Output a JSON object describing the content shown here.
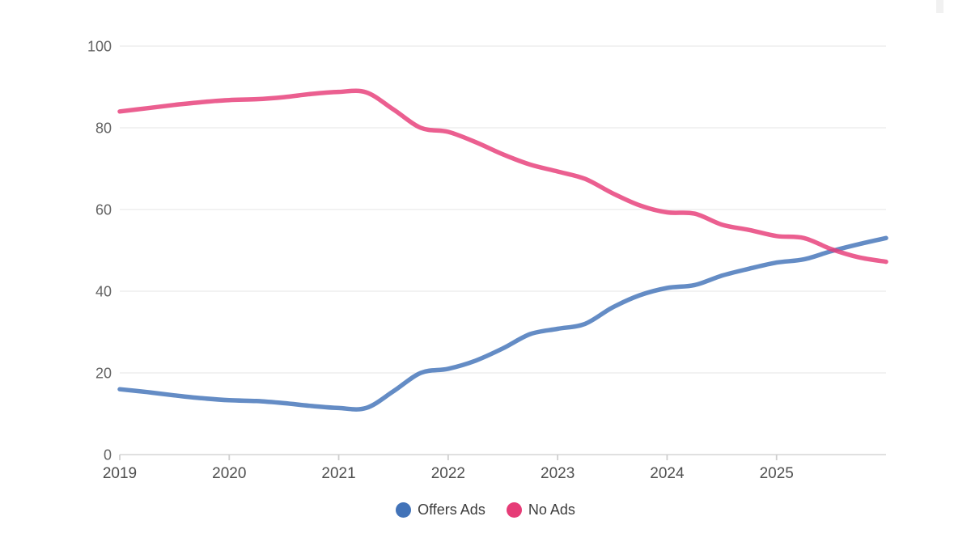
{
  "chart_data": {
    "type": "line",
    "title": "",
    "xlabel": "",
    "ylabel": "",
    "xlim": [
      2019,
      2026
    ],
    "ylim": [
      0,
      100
    ],
    "grid": "horizontal",
    "legend_position": "bottom",
    "x_ticks": [
      2019,
      2020,
      2021,
      2022,
      2023,
      2024,
      2025
    ],
    "x_tick_labels": [
      "2019",
      "2020",
      "2021",
      "2022",
      "2023",
      "2024",
      "2025"
    ],
    "y_ticks": [
      0,
      20,
      40,
      60,
      80,
      100
    ],
    "y_tick_labels": [
      "0",
      "20",
      "40",
      "60",
      "80",
      "100"
    ],
    "x": [
      2019,
      2019.25,
      2019.5,
      2019.75,
      2020,
      2020.25,
      2020.5,
      2020.75,
      2021,
      2021.25,
      2021.5,
      2021.75,
      2022,
      2022.25,
      2022.5,
      2022.75,
      2023,
      2023.25,
      2023.5,
      2023.75,
      2024,
      2024.25,
      2024.5,
      2024.75,
      2025,
      2025.25,
      2025.5,
      2025.75,
      2026
    ],
    "series": [
      {
        "name": "Offers Ads",
        "color": "#4273b8",
        "line_opacity": 0.82,
        "values": [
          16,
          15.3,
          14.5,
          13.8,
          13.3,
          13.1,
          12.6,
          11.9,
          11.4,
          11.4,
          15.5,
          20,
          21,
          23,
          26,
          29.5,
          30.8,
          32,
          36,
          39,
          40.8,
          41.5,
          43.8,
          45.5,
          47,
          47.8,
          49.8,
          51.5,
          53
        ]
      },
      {
        "name": "No Ads",
        "color": "#e63c77",
        "line_opacity": 0.82,
        "values": [
          84,
          84.8,
          85.6,
          86.3,
          86.8,
          87,
          87.5,
          88.3,
          88.8,
          88.7,
          84.5,
          80,
          79,
          76.5,
          73.5,
          71,
          69.3,
          67.5,
          64,
          61,
          59.3,
          59,
          56.3,
          55,
          53.5,
          53,
          50.3,
          48.3,
          47.2
        ]
      }
    ],
    "colors": {
      "gridline": "#ededed",
      "axis_line": "#dcdcdc",
      "tick": "#cfcfcf",
      "y_label_text": "#646464",
      "x_label_text": "#4f4f4f",
      "legend_text": "#3c3c3c"
    }
  }
}
